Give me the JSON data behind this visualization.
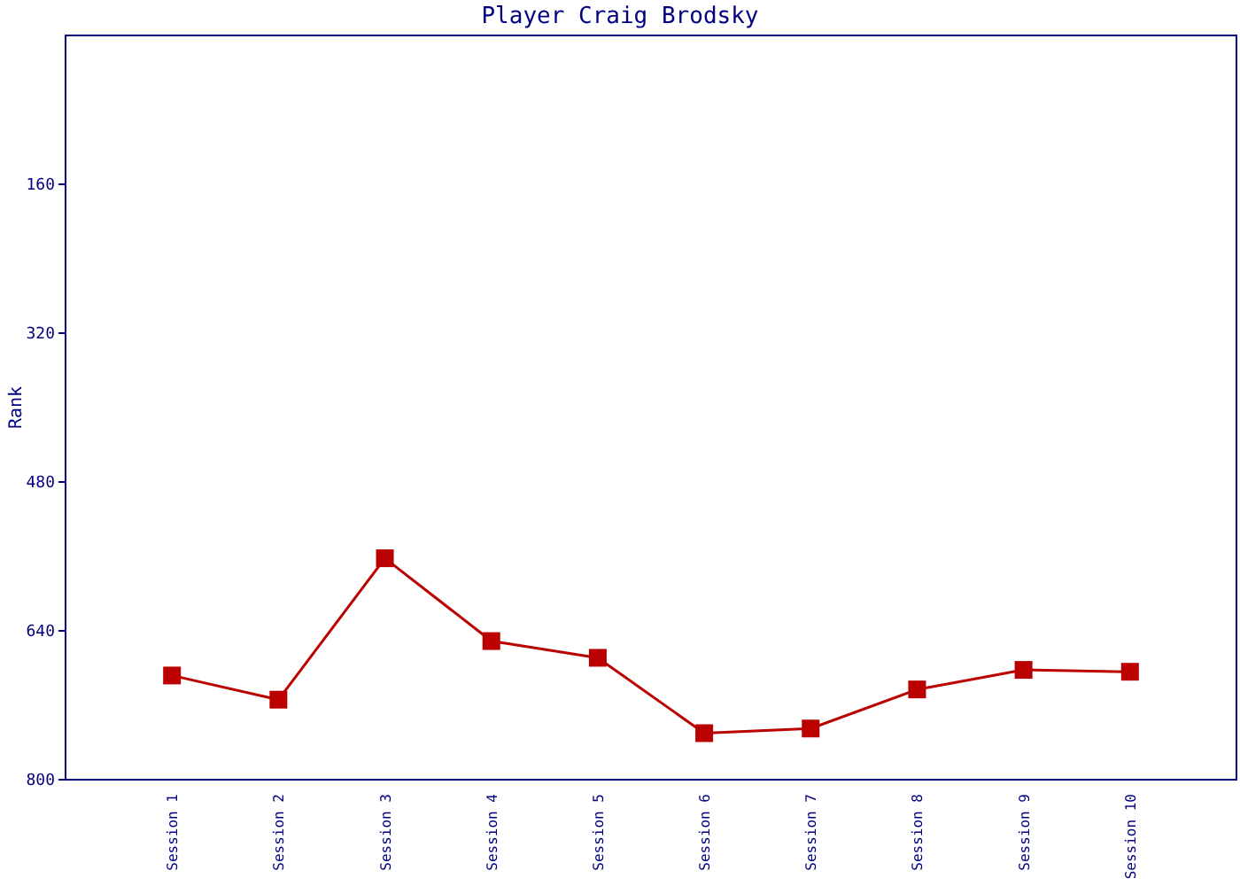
{
  "chart_data": {
    "type": "line",
    "title": "Player Craig Brodsky",
    "ylabel": "Rank",
    "categories": [
      "Session 1",
      "Session 2",
      "Session 3",
      "Session 4",
      "Session 5",
      "Session 6",
      "Session 7",
      "Session 8",
      "Session 9",
      "Session 10"
    ],
    "series": [
      {
        "color": "#bb0000",
        "values": [
          688,
          714,
          562,
          651,
          669,
          750,
          745,
          703,
          682,
          684
        ]
      }
    ],
    "ylim": [
      800,
      0
    ],
    "yticks": [
      160,
      320,
      480,
      640,
      800
    ],
    "marker": "square",
    "line_style": "solid"
  }
}
